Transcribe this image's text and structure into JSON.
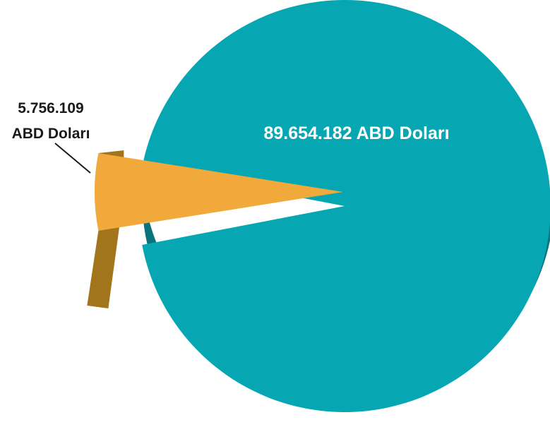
{
  "chart_data": {
    "type": "pie",
    "style": "3d-exploded",
    "title": "",
    "slices": [
      {
        "value": 89654182,
        "label": "89.654.182 ABD Doları",
        "color": "#06a7b3",
        "side_color": "#0a737b"
      },
      {
        "value": 5756109,
        "label_line1": "5.756.109",
        "label_line2": "ABD Doları",
        "color": "#f2a93b",
        "side_color": "#a2741c"
      }
    ],
    "legend": "none"
  }
}
